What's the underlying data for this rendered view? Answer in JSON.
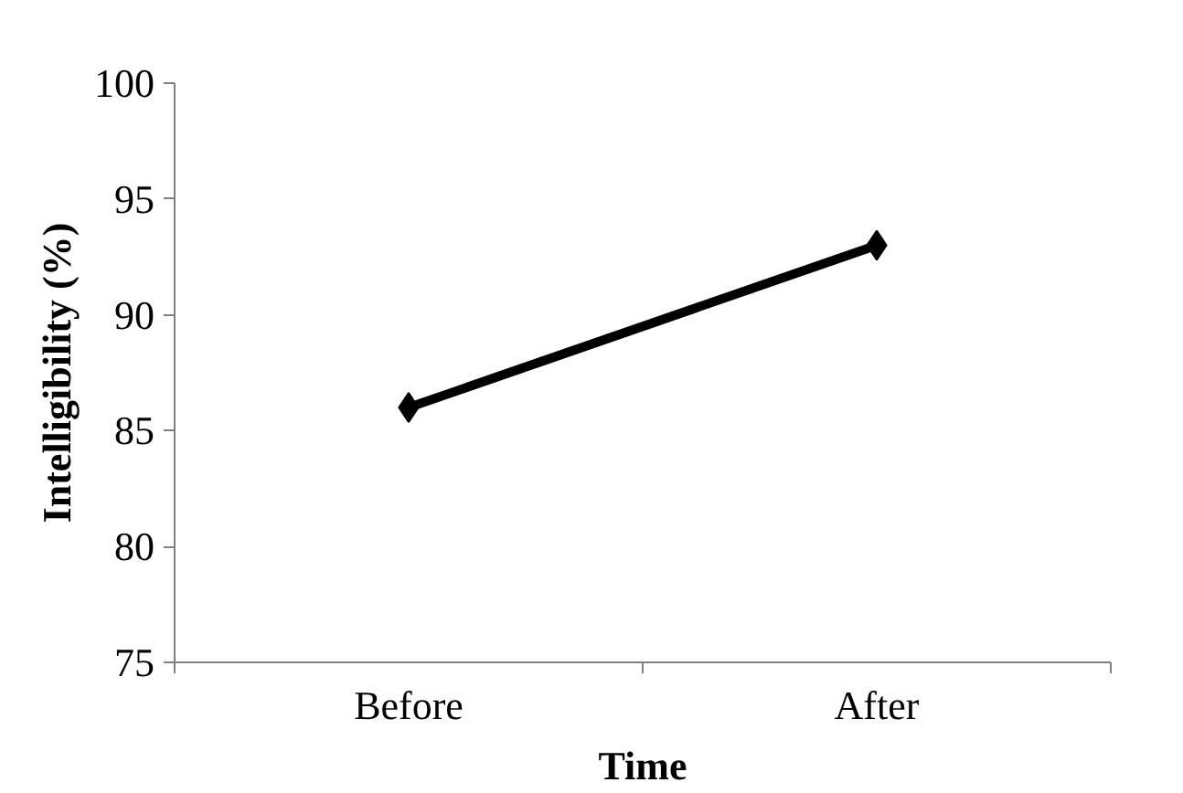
{
  "chart_data": {
    "type": "line",
    "xlabel": "Time",
    "ylabel": "Intelligibility (%)",
    "categories": [
      "Before",
      "After"
    ],
    "series": [
      {
        "color": "#000000",
        "values": [
          86,
          93
        ]
      }
    ],
    "ylim": [
      75,
      100
    ],
    "yticks": [
      75,
      80,
      85,
      90,
      95,
      100
    ],
    "grid": false,
    "marker": "diamond",
    "line_style": "solid"
  }
}
